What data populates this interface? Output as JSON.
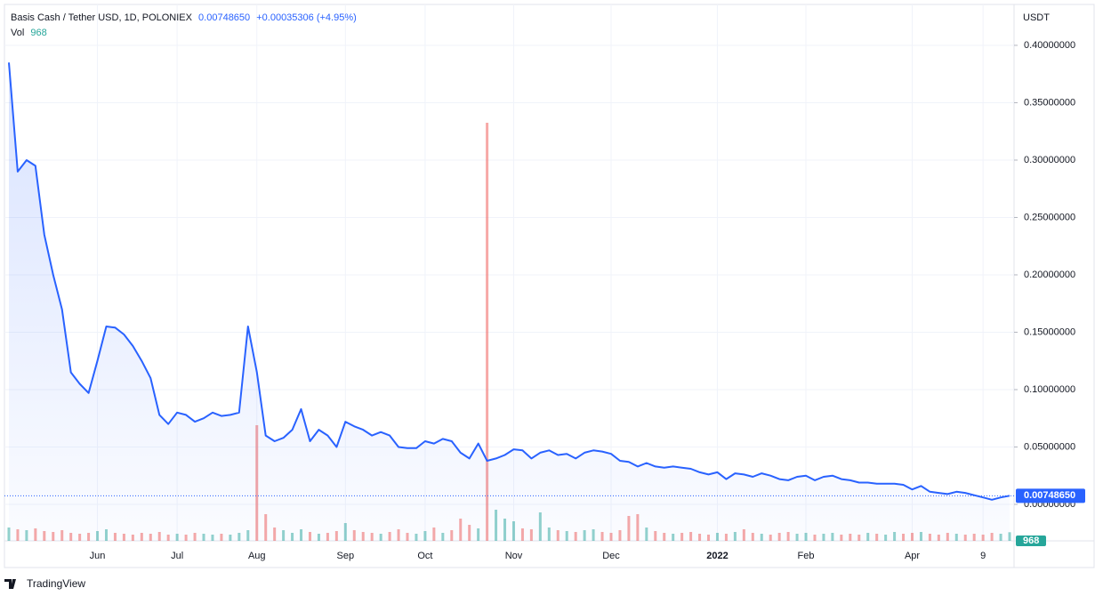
{
  "chart_data": {
    "type": "line",
    "title": "Basis Cash / Tether USD, 1D, POLONIEX",
    "change": "+0.00035306 (+4.95%)",
    "y_unit": "USDT",
    "brand": "TradingView",
    "categories": [
      null,
      null,
      null,
      null,
      null,
      null,
      null,
      null,
      null,
      null,
      "Jun",
      null,
      null,
      null,
      null,
      null,
      null,
      null,
      null,
      "Jul",
      null,
      null,
      null,
      null,
      null,
      null,
      null,
      null,
      "Aug",
      null,
      null,
      null,
      null,
      null,
      null,
      null,
      null,
      null,
      "Sep",
      null,
      null,
      null,
      null,
      null,
      null,
      null,
      null,
      "Oct",
      null,
      null,
      null,
      null,
      null,
      null,
      null,
      null,
      null,
      "Nov",
      null,
      null,
      null,
      null,
      null,
      null,
      null,
      null,
      null,
      null,
      "Dec",
      null,
      null,
      null,
      null,
      null,
      null,
      null,
      null,
      null,
      null,
      null,
      "2022",
      null,
      null,
      null,
      null,
      null,
      null,
      null,
      null,
      null,
      "Feb",
      null,
      null,
      null,
      null,
      null,
      null,
      null,
      null,
      null,
      null,
      null,
      "Apr",
      null,
      null,
      null,
      null,
      null,
      null,
      null,
      "9",
      null,
      null,
      null
    ],
    "series": [
      {
        "color": "#2962ff",
        "price_label": "0.00748650",
        "values": [
          0.385,
          0.29,
          0.3,
          0.295,
          0.235,
          0.2,
          0.17,
          0.115,
          0.105,
          0.097,
          0.125,
          0.155,
          0.154,
          0.148,
          0.138,
          0.125,
          0.11,
          0.078,
          0.07,
          0.08,
          0.078,
          0.072,
          0.075,
          0.08,
          0.077,
          0.078,
          0.08,
          0.155,
          0.115,
          0.06,
          0.055,
          0.058,
          0.065,
          0.083,
          0.055,
          0.065,
          0.06,
          0.05,
          0.072,
          0.068,
          0.065,
          0.06,
          0.063,
          0.06,
          0.05,
          0.049,
          0.049,
          0.055,
          0.053,
          0.057,
          0.055,
          0.045,
          0.04,
          0.053,
          0.038,
          0.04,
          0.043,
          0.048,
          0.047,
          0.04,
          0.045,
          0.047,
          0.043,
          0.044,
          0.04,
          0.045,
          0.047,
          0.046,
          0.044,
          0.038,
          0.037,
          0.033,
          0.036,
          0.033,
          0.032,
          0.033,
          0.032,
          0.031,
          0.028,
          0.026,
          0.028,
          0.022,
          0.027,
          0.026,
          0.024,
          0.027,
          0.025,
          0.022,
          0.021,
          0.024,
          0.025,
          0.021,
          0.024,
          0.025,
          0.022,
          0.021,
          0.019,
          0.019,
          0.018,
          0.018,
          0.018,
          0.017,
          0.013,
          0.016,
          0.011,
          0.01,
          0.009,
          0.011,
          0.01,
          0.008,
          0.006,
          0.004,
          0.006,
          0.0074865
        ]
      }
    ],
    "ylim": [
      -0.0318,
      0.4333
    ],
    "yticks": [
      {
        "value": 0,
        "label": "0.00000000"
      },
      {
        "value": 0.05,
        "label": "0.05000000"
      },
      {
        "value": 0.1,
        "label": "0.10000000"
      },
      {
        "value": 0.15,
        "label": "0.15000000"
      },
      {
        "value": 0.2,
        "label": "0.20000000"
      },
      {
        "value": 0.25,
        "label": "0.25000000"
      },
      {
        "value": 0.3,
        "label": "0.30000000"
      },
      {
        "value": 0.35,
        "label": "0.35000000"
      },
      {
        "value": 0.4,
        "label": "0.40000000"
      }
    ],
    "grid": true,
    "volume": {
      "label": "Vol",
      "up_color": "#26a69a",
      "down_color": "#ef5350",
      "vlim": [
        0,
        60000
      ],
      "values": [
        1500,
        1300,
        1200,
        1400,
        1100,
        1000,
        1200,
        900,
        800,
        900,
        1100,
        1300,
        900,
        800,
        700,
        900,
        800,
        1000,
        700,
        800,
        700,
        900,
        800,
        700,
        800,
        700,
        900,
        1200,
        13000,
        3000,
        1500,
        1200,
        900,
        1300,
        1000,
        800,
        900,
        1100,
        2000,
        1200,
        1000,
        900,
        800,
        1000,
        1300,
        900,
        800,
        1100,
        1500,
        900,
        1200,
        2500,
        1800,
        1400,
        47000,
        3500,
        2500,
        2200,
        1400,
        1300,
        3200,
        1500,
        1200,
        1100,
        1000,
        1200,
        1300,
        1000,
        900,
        1200,
        2800,
        3000,
        1500,
        1100,
        900,
        800,
        900,
        1000,
        800,
        700,
        900,
        800,
        1000,
        1300,
        900,
        800,
        700,
        900,
        1000,
        800,
        900,
        700,
        800,
        900,
        700,
        800,
        700,
        900,
        800,
        700,
        1000,
        800,
        900,
        1000,
        800,
        700,
        900,
        800,
        700,
        800,
        700,
        900,
        800,
        968
      ]
    }
  }
}
